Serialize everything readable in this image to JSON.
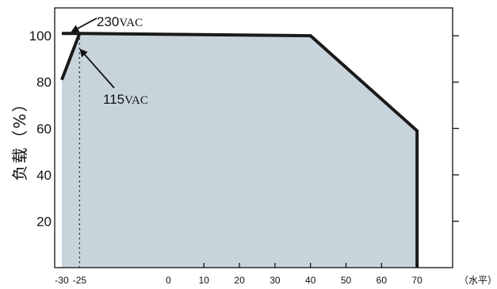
{
  "chart_data": {
    "type": "area",
    "title": "",
    "ylabel": "负载（%）",
    "xlabel": "（水平）",
    "xlim": [
      -32,
      80
    ],
    "ylim": [
      0,
      112
    ],
    "x_ticks": [
      -30,
      -25,
      0,
      10,
      20,
      30,
      40,
      50,
      60,
      70
    ],
    "x_tick_labels": [
      "-30",
      "-25",
      "0",
      "10",
      "20",
      "30",
      "40",
      "50",
      "60",
      "70"
    ],
    "y_ticks": [
      20,
      40,
      60,
      80,
      100
    ],
    "y_tick_labels": [
      "20",
      "40",
      "60",
      "80",
      "100"
    ],
    "grid": false,
    "fill_color": "#c8d4dc",
    "line_color": "#1a1a1a",
    "series": [
      {
        "name": "230VAC",
        "x": [
          -30,
          -25,
          40,
          70,
          70
        ],
        "y": [
          101,
          101,
          100,
          59,
          0
        ]
      },
      {
        "name": "115VAC",
        "x": [
          -30,
          -25
        ],
        "y": [
          81,
          101
        ]
      }
    ],
    "reference_lines": [
      {
        "axis": "x",
        "value": -25,
        "style": "dotted"
      }
    ],
    "annotations": [
      {
        "number": "230",
        "unit": "VAC",
        "target": [
          -30,
          101
        ]
      },
      {
        "number": "115",
        "unit": "VAC",
        "target": [
          -25,
          95
        ]
      }
    ]
  }
}
